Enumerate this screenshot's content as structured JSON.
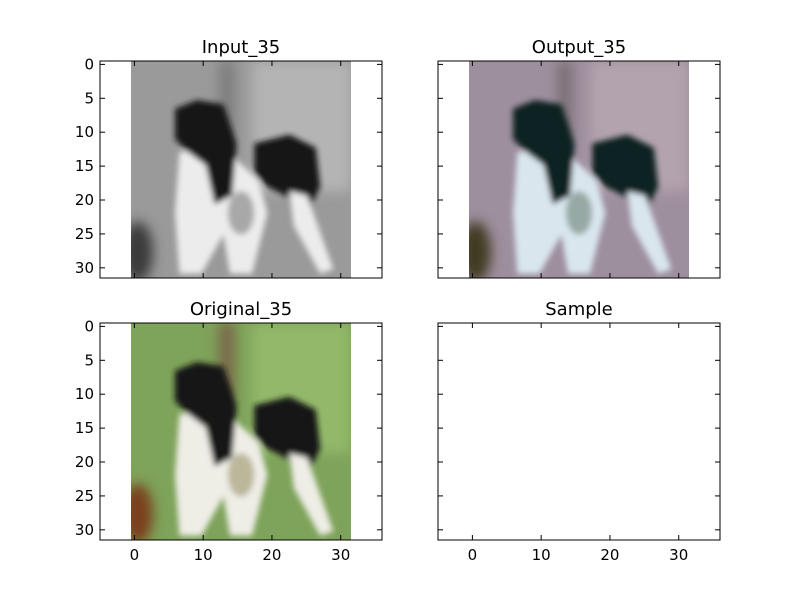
{
  "chart_data": [
    {
      "type": "heatmap",
      "title": "Input_35",
      "image": "grayscale dog photo",
      "xlim": [
        -5,
        36
      ],
      "ylim": [
        31.5,
        -0.5
      ],
      "xticks": [
        0,
        10,
        20,
        30
      ],
      "yticks": [
        0,
        5,
        10,
        15,
        20,
        25,
        30
      ],
      "show_xticklabels": false,
      "show_yticklabels": true
    },
    {
      "type": "heatmap",
      "title": "Output_35",
      "image": "colorized dog photo (purple/teal tint)",
      "xlim": [
        -5,
        36
      ],
      "ylim": [
        31.5,
        -0.5
      ],
      "xticks": [
        0,
        10,
        20,
        30
      ],
      "yticks": [
        0,
        5,
        10,
        15,
        20,
        25,
        30
      ],
      "show_xticklabels": false,
      "show_yticklabels": false
    },
    {
      "type": "heatmap",
      "title": "Original_35",
      "image": "color dog photo on green grass",
      "xlim": [
        -5,
        36
      ],
      "ylim": [
        31.5,
        -0.5
      ],
      "xticks": [
        0,
        10,
        20,
        30
      ],
      "yticks": [
        0,
        5,
        10,
        15,
        20,
        25,
        30
      ],
      "show_xticklabels": true,
      "show_yticklabels": true
    },
    {
      "type": "heatmap",
      "title": "Sample",
      "image": "empty",
      "xlim": [
        -5,
        36
      ],
      "ylim": [
        31.5,
        -0.5
      ],
      "xticks": [
        0,
        10,
        20,
        30
      ],
      "yticks": [
        0,
        5,
        10,
        15,
        20,
        25,
        30
      ],
      "show_xticklabels": true,
      "show_yticklabels": false
    }
  ],
  "palettes": {
    "input": {
      "bg": "#9a9a9a",
      "bg2": "#b4b4b4",
      "pole": "#7d7d7d",
      "dark": "#141414",
      "light": "#ececec",
      "mid": "#8c8c8c",
      "corner": "#3a3a3a"
    },
    "output": {
      "bg": "#9e8f9e",
      "bg2": "#b3a3ae",
      "pole": "#7b6f76",
      "dark": "#0f2222",
      "light": "#d9e6ee",
      "mid": "#7a8e86",
      "corner": "#3f3a22"
    },
    "original": {
      "bg": "#7ea35a",
      "bg2": "#93b86b",
      "pole": "#7a6648",
      "dark": "#161616",
      "light": "#eeede6",
      "mid": "#a6a07a",
      "corner": "#7a3f1e"
    }
  }
}
